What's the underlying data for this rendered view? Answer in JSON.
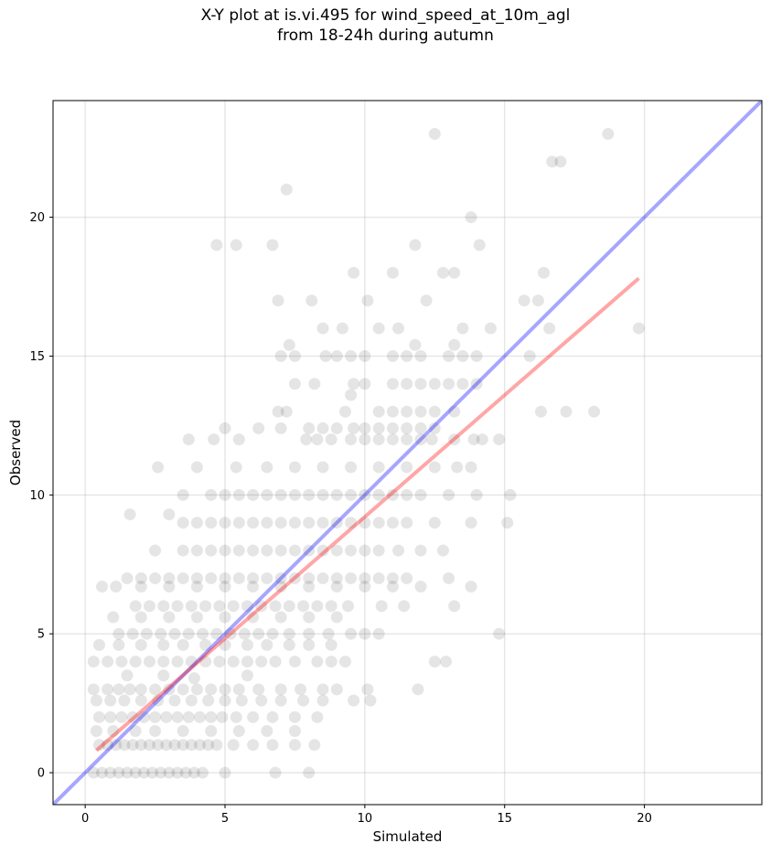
{
  "chart_data": {
    "type": "scatter",
    "title_line1": "X-Y plot at is.vi.495 for wind_speed_at_10m_agl",
    "title_line2": "from 18-24h during autumn",
    "xlabel": "Simulated",
    "ylabel": "Observed",
    "xlim": [
      -1.15,
      24.2
    ],
    "ylim": [
      -1.15,
      24.2
    ],
    "x_ticks": [
      0,
      5,
      10,
      15,
      20
    ],
    "y_ticks": [
      0,
      5,
      10,
      15,
      20
    ],
    "grid": true,
    "point_color": "#000000",
    "point_alpha": 0.1,
    "identity_line": {
      "color": "#0000ff",
      "alpha": 0.35,
      "from": [
        -1.15,
        -1.15
      ],
      "to": [
        24.2,
        24.2
      ]
    },
    "fit_line": {
      "color": "#ff0000",
      "alpha": 0.35,
      "from": [
        0.4,
        0.8
      ],
      "to": [
        19.8,
        17.8
      ]
    },
    "points": [
      [
        0.3,
        0
      ],
      [
        0.6,
        0
      ],
      [
        0.9,
        0
      ],
      [
        1.2,
        0
      ],
      [
        1.5,
        0
      ],
      [
        1.8,
        0
      ],
      [
        2.1,
        0
      ],
      [
        2.4,
        0
      ],
      [
        2.7,
        0
      ],
      [
        3,
        0
      ],
      [
        3.3,
        0
      ],
      [
        3.6,
        0
      ],
      [
        3.9,
        0
      ],
      [
        4.2,
        0
      ],
      [
        5,
        0
      ],
      [
        6.8,
        0
      ],
      [
        8,
        0
      ],
      [
        0.5,
        1
      ],
      [
        0.8,
        1
      ],
      [
        1.1,
        1
      ],
      [
        1.4,
        1
      ],
      [
        1.7,
        1
      ],
      [
        2,
        1
      ],
      [
        2.3,
        1
      ],
      [
        2.6,
        1
      ],
      [
        2.9,
        1
      ],
      [
        3.2,
        1
      ],
      [
        3.5,
        1
      ],
      [
        3.8,
        1
      ],
      [
        4.1,
        1
      ],
      [
        4.4,
        1
      ],
      [
        4.7,
        1
      ],
      [
        5.3,
        1
      ],
      [
        6,
        1
      ],
      [
        6.7,
        1
      ],
      [
        7.5,
        1
      ],
      [
        8.2,
        1
      ],
      [
        0.4,
        1.5
      ],
      [
        1,
        1.5
      ],
      [
        1.8,
        1.5
      ],
      [
        2.5,
        1.5
      ],
      [
        3.5,
        1.5
      ],
      [
        4.5,
        1.5
      ],
      [
        5.5,
        1.5
      ],
      [
        6.5,
        1.5
      ],
      [
        7.5,
        1.5
      ],
      [
        0.5,
        2
      ],
      [
        0.9,
        2
      ],
      [
        1.3,
        2
      ],
      [
        1.7,
        2
      ],
      [
        2.1,
        2
      ],
      [
        2.5,
        2
      ],
      [
        2.9,
        2
      ],
      [
        3.3,
        2
      ],
      [
        3.7,
        2
      ],
      [
        4.1,
        2
      ],
      [
        4.5,
        2
      ],
      [
        4.9,
        2
      ],
      [
        5.4,
        2
      ],
      [
        6,
        2
      ],
      [
        6.7,
        2
      ],
      [
        7.5,
        2
      ],
      [
        8.3,
        2
      ],
      [
        0.4,
        2.6
      ],
      [
        0.9,
        2.6
      ],
      [
        1.4,
        2.6
      ],
      [
        2,
        2.6
      ],
      [
        2.6,
        2.6
      ],
      [
        3.2,
        2.6
      ],
      [
        3.8,
        2.6
      ],
      [
        4.4,
        2.6
      ],
      [
        5,
        2.6
      ],
      [
        5.6,
        2.6
      ],
      [
        6.3,
        2.6
      ],
      [
        7,
        2.6
      ],
      [
        7.8,
        2.6
      ],
      [
        8.5,
        2.6
      ],
      [
        9.6,
        2.6
      ],
      [
        10.2,
        2.6
      ],
      [
        0.3,
        3
      ],
      [
        0.8,
        3
      ],
      [
        1.2,
        3
      ],
      [
        1.6,
        3
      ],
      [
        2,
        3
      ],
      [
        2.5,
        3
      ],
      [
        3,
        3
      ],
      [
        3.5,
        3
      ],
      [
        4,
        3
      ],
      [
        4.5,
        3
      ],
      [
        5,
        3
      ],
      [
        5.5,
        3
      ],
      [
        6.2,
        3
      ],
      [
        7,
        3
      ],
      [
        7.7,
        3
      ],
      [
        8.5,
        3
      ],
      [
        9,
        3
      ],
      [
        10.1,
        3
      ],
      [
        11.9,
        3
      ],
      [
        3.9,
        3.4
      ],
      [
        1.5,
        3.5
      ],
      [
        2.8,
        3.5
      ],
      [
        5.8,
        3.5
      ],
      [
        0.3,
        4
      ],
      [
        0.8,
        4
      ],
      [
        1.3,
        4
      ],
      [
        1.8,
        4
      ],
      [
        2.3,
        4
      ],
      [
        2.8,
        4
      ],
      [
        3.3,
        4
      ],
      [
        3.8,
        4
      ],
      [
        4.3,
        4
      ],
      [
        4.8,
        4
      ],
      [
        5.3,
        4
      ],
      [
        5.8,
        4
      ],
      [
        6.3,
        4
      ],
      [
        6.8,
        4
      ],
      [
        7.5,
        4
      ],
      [
        8.3,
        4
      ],
      [
        8.8,
        4
      ],
      [
        9.3,
        4
      ],
      [
        12.5,
        4
      ],
      [
        12.9,
        4
      ],
      [
        0.5,
        4.6
      ],
      [
        1.2,
        4.6
      ],
      [
        2,
        4.6
      ],
      [
        2.8,
        4.6
      ],
      [
        3.5,
        4.6
      ],
      [
        4.3,
        4.6
      ],
      [
        5,
        4.6
      ],
      [
        5.8,
        4.6
      ],
      [
        6.5,
        4.6
      ],
      [
        7.3,
        4.6
      ],
      [
        8,
        4.6
      ],
      [
        8.8,
        4.6
      ],
      [
        1.2,
        5
      ],
      [
        1.7,
        5
      ],
      [
        2.2,
        5
      ],
      [
        2.7,
        5
      ],
      [
        3.2,
        5
      ],
      [
        3.7,
        5
      ],
      [
        4.2,
        5
      ],
      [
        4.7,
        5
      ],
      [
        5.2,
        5
      ],
      [
        5.7,
        5
      ],
      [
        6.2,
        5
      ],
      [
        6.7,
        5
      ],
      [
        7.3,
        5
      ],
      [
        8,
        5
      ],
      [
        8.7,
        5
      ],
      [
        9.5,
        5
      ],
      [
        10,
        5
      ],
      [
        10.5,
        5
      ],
      [
        14.8,
        5
      ],
      [
        1,
        5.6
      ],
      [
        2,
        5.6
      ],
      [
        3,
        5.6
      ],
      [
        4,
        5.6
      ],
      [
        5,
        5.6
      ],
      [
        6,
        5.6
      ],
      [
        7,
        5.6
      ],
      [
        8,
        5.6
      ],
      [
        9,
        5.6
      ],
      [
        1.8,
        6
      ],
      [
        2.3,
        6
      ],
      [
        2.8,
        6
      ],
      [
        3.3,
        6
      ],
      [
        3.8,
        6
      ],
      [
        4.3,
        6
      ],
      [
        4.8,
        6
      ],
      [
        5.3,
        6
      ],
      [
        5.8,
        6
      ],
      [
        6.3,
        6
      ],
      [
        6.8,
        6
      ],
      [
        7.3,
        6
      ],
      [
        7.8,
        6
      ],
      [
        8.3,
        6
      ],
      [
        8.8,
        6
      ],
      [
        9.4,
        6
      ],
      [
        10.6,
        6
      ],
      [
        11.4,
        6
      ],
      [
        13.2,
        6
      ],
      [
        0.6,
        6.7
      ],
      [
        1.1,
        6.7
      ],
      [
        2,
        6.7
      ],
      [
        3,
        6.7
      ],
      [
        4,
        6.7
      ],
      [
        5,
        6.7
      ],
      [
        6,
        6.7
      ],
      [
        7,
        6.7
      ],
      [
        8,
        6.7
      ],
      [
        9,
        6.7
      ],
      [
        10,
        6.7
      ],
      [
        11,
        6.7
      ],
      [
        12,
        6.7
      ],
      [
        13.8,
        6.7
      ],
      [
        1.5,
        7
      ],
      [
        2,
        7
      ],
      [
        2.5,
        7
      ],
      [
        3,
        7
      ],
      [
        3.5,
        7
      ],
      [
        4,
        7
      ],
      [
        4.5,
        7
      ],
      [
        5,
        7
      ],
      [
        5.5,
        7
      ],
      [
        6,
        7
      ],
      [
        6.5,
        7
      ],
      [
        7,
        7
      ],
      [
        7.5,
        7
      ],
      [
        8,
        7
      ],
      [
        8.5,
        7
      ],
      [
        9,
        7
      ],
      [
        9.5,
        7
      ],
      [
        10,
        7
      ],
      [
        10.5,
        7
      ],
      [
        11,
        7
      ],
      [
        11.5,
        7
      ],
      [
        13,
        7
      ],
      [
        2.5,
        8
      ],
      [
        3.5,
        8
      ],
      [
        4,
        8
      ],
      [
        4.5,
        8
      ],
      [
        5,
        8
      ],
      [
        5.5,
        8
      ],
      [
        6,
        8
      ],
      [
        6.5,
        8
      ],
      [
        7,
        8
      ],
      [
        7.5,
        8
      ],
      [
        8,
        8
      ],
      [
        8.5,
        8
      ],
      [
        9,
        8
      ],
      [
        9.5,
        8
      ],
      [
        10,
        8
      ],
      [
        10.5,
        8
      ],
      [
        11.2,
        8
      ],
      [
        12,
        8
      ],
      [
        12.8,
        8
      ],
      [
        1.6,
        9.3
      ],
      [
        3,
        9.3
      ],
      [
        3.5,
        9
      ],
      [
        4,
        9
      ],
      [
        4.5,
        9
      ],
      [
        5,
        9
      ],
      [
        5.5,
        9
      ],
      [
        6,
        9
      ],
      [
        6.5,
        9
      ],
      [
        7,
        9
      ],
      [
        7.5,
        9
      ],
      [
        8,
        9
      ],
      [
        8.5,
        9
      ],
      [
        9,
        9
      ],
      [
        9.5,
        9
      ],
      [
        10,
        9
      ],
      [
        10.5,
        9
      ],
      [
        11,
        9
      ],
      [
        11.5,
        9
      ],
      [
        12.5,
        9
      ],
      [
        13.8,
        9
      ],
      [
        15.1,
        9
      ],
      [
        3.5,
        10
      ],
      [
        4.5,
        10
      ],
      [
        5,
        10
      ],
      [
        5.5,
        10
      ],
      [
        6,
        10
      ],
      [
        6.5,
        10
      ],
      [
        7,
        10
      ],
      [
        7.5,
        10
      ],
      [
        8,
        10
      ],
      [
        8.5,
        10
      ],
      [
        9,
        10
      ],
      [
        9.5,
        10
      ],
      [
        10,
        10
      ],
      [
        10.5,
        10
      ],
      [
        11,
        10
      ],
      [
        11.5,
        10
      ],
      [
        12,
        10
      ],
      [
        13,
        10
      ],
      [
        14,
        10
      ],
      [
        15.2,
        10
      ],
      [
        2.6,
        11
      ],
      [
        4,
        11
      ],
      [
        5.4,
        11
      ],
      [
        6.5,
        11
      ],
      [
        7.5,
        11
      ],
      [
        8.5,
        11
      ],
      [
        9.5,
        11
      ],
      [
        10.5,
        11
      ],
      [
        11.5,
        11
      ],
      [
        12.5,
        11
      ],
      [
        13.3,
        11
      ],
      [
        13.8,
        11
      ],
      [
        3.7,
        12
      ],
      [
        4.6,
        12
      ],
      [
        5.5,
        12
      ],
      [
        7.9,
        12
      ],
      [
        8.3,
        12
      ],
      [
        8.8,
        12
      ],
      [
        9.5,
        12
      ],
      [
        10,
        12
      ],
      [
        10.5,
        12
      ],
      [
        11,
        12
      ],
      [
        11.5,
        12
      ],
      [
        12,
        12
      ],
      [
        12.4,
        12
      ],
      [
        13.2,
        12
      ],
      [
        13.9,
        12
      ],
      [
        14.2,
        12
      ],
      [
        14.8,
        12
      ],
      [
        5,
        12.4
      ],
      [
        6.2,
        12.4
      ],
      [
        7,
        12.4
      ],
      [
        8,
        12.4
      ],
      [
        8.5,
        12.4
      ],
      [
        9,
        12.4
      ],
      [
        9.6,
        12.4
      ],
      [
        10,
        12.4
      ],
      [
        10.5,
        12.4
      ],
      [
        11,
        12.4
      ],
      [
        11.5,
        12.4
      ],
      [
        12,
        12.4
      ],
      [
        12.5,
        12.4
      ],
      [
        6.9,
        13
      ],
      [
        7.2,
        13
      ],
      [
        9.3,
        13
      ],
      [
        10.5,
        13
      ],
      [
        11,
        13
      ],
      [
        11.5,
        13
      ],
      [
        12,
        13
      ],
      [
        12.5,
        13
      ],
      [
        13.2,
        13
      ],
      [
        16.3,
        13
      ],
      [
        17.2,
        13
      ],
      [
        18.2,
        13
      ],
      [
        7.5,
        14
      ],
      [
        8.2,
        14
      ],
      [
        9.6,
        14
      ],
      [
        10,
        14
      ],
      [
        11,
        14
      ],
      [
        11.5,
        14
      ],
      [
        12,
        14
      ],
      [
        12.5,
        14
      ],
      [
        13,
        14
      ],
      [
        13.5,
        14
      ],
      [
        14,
        14
      ],
      [
        9.5,
        13.6
      ],
      [
        7,
        15
      ],
      [
        7.5,
        15
      ],
      [
        8.6,
        15
      ],
      [
        9,
        15
      ],
      [
        9.5,
        15
      ],
      [
        10,
        15
      ],
      [
        11,
        15
      ],
      [
        11.5,
        15
      ],
      [
        12,
        15
      ],
      [
        13,
        15
      ],
      [
        13.5,
        15
      ],
      [
        14,
        15
      ],
      [
        15.9,
        15
      ],
      [
        7.3,
        15.4
      ],
      [
        11.8,
        15.4
      ],
      [
        13.2,
        15.4
      ],
      [
        8.5,
        16
      ],
      [
        9.2,
        16
      ],
      [
        10.5,
        16
      ],
      [
        11.2,
        16
      ],
      [
        13.5,
        16
      ],
      [
        14.5,
        16
      ],
      [
        16.6,
        16
      ],
      [
        19.8,
        16
      ],
      [
        6.9,
        17
      ],
      [
        8.1,
        17
      ],
      [
        10.1,
        17
      ],
      [
        12.2,
        17
      ],
      [
        15.7,
        17
      ],
      [
        16.2,
        17
      ],
      [
        9.6,
        18
      ],
      [
        11,
        18
      ],
      [
        12.8,
        18
      ],
      [
        13.2,
        18
      ],
      [
        16.4,
        18
      ],
      [
        4.7,
        19
      ],
      [
        5.4,
        19
      ],
      [
        6.7,
        19
      ],
      [
        11.8,
        19
      ],
      [
        14.1,
        19
      ],
      [
        13.8,
        20
      ],
      [
        7.2,
        21
      ],
      [
        16.7,
        22
      ],
      [
        17,
        22
      ],
      [
        12.5,
        23
      ],
      [
        18.7,
        23
      ]
    ]
  }
}
